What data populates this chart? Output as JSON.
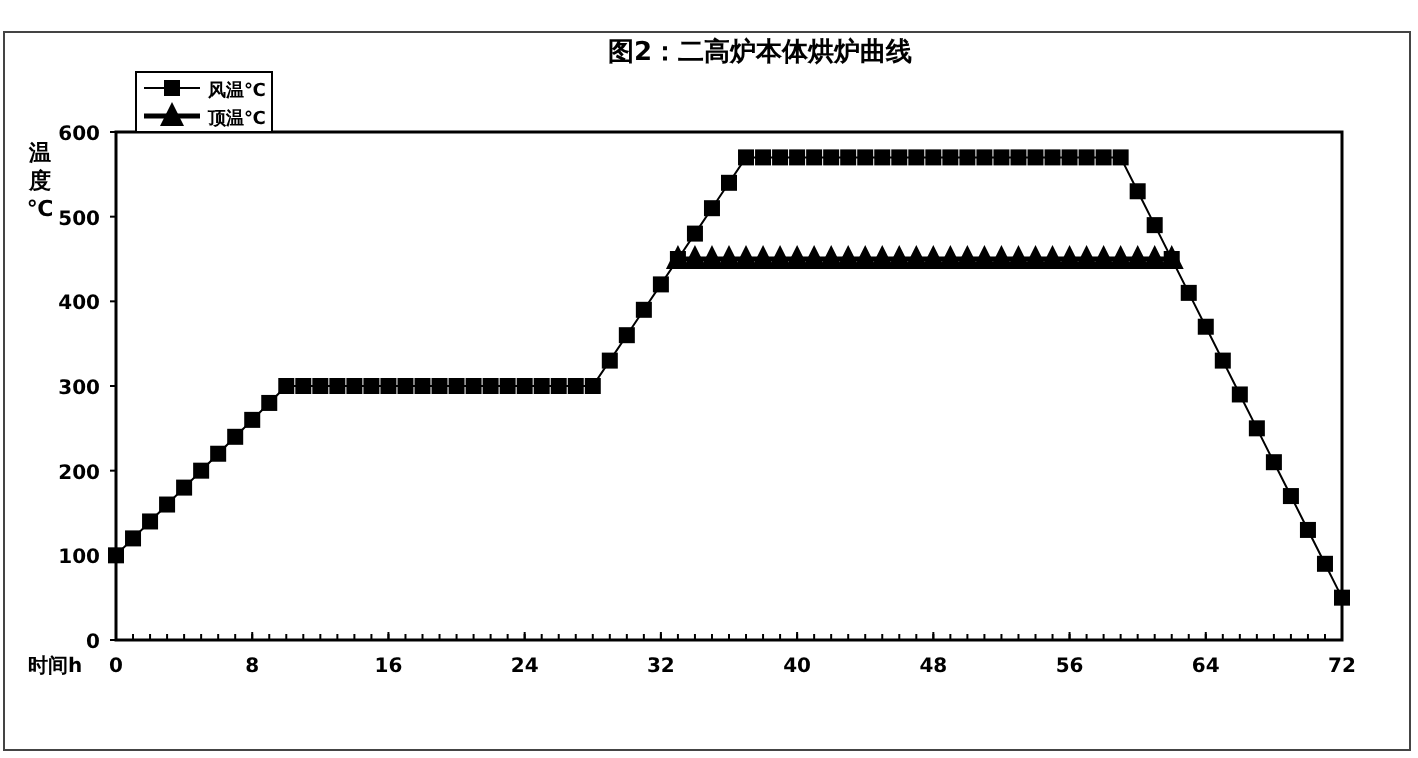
{
  "chart_data": {
    "type": "line",
    "title": "图2：二高炉本体烘炉曲线",
    "xlabel": "时间h",
    "ylabel": "温度℃",
    "xlim": [
      0,
      72
    ],
    "xticks": [
      0,
      8,
      16,
      24,
      32,
      40,
      48,
      56,
      64,
      72
    ],
    "ylim": [
      0,
      600
    ],
    "yticks": [
      0,
      100,
      200,
      300,
      400,
      500,
      600
    ],
    "grid": false,
    "legend": "top left",
    "series": [
      {
        "name": "风温℃",
        "color": "#000000",
        "marker": "square",
        "x": [
          0,
          1,
          2,
          3,
          4,
          5,
          6,
          7,
          8,
          9,
          10,
          11,
          12,
          13,
          14,
          15,
          16,
          17,
          18,
          19,
          20,
          21,
          22,
          23,
          24,
          25,
          26,
          27,
          28,
          29,
          30,
          31,
          32,
          33,
          34,
          35,
          36,
          37,
          38,
          39,
          40,
          41,
          42,
          43,
          44,
          45,
          46,
          47,
          48,
          49,
          50,
          51,
          52,
          53,
          54,
          55,
          56,
          57,
          58,
          59,
          60,
          61,
          62,
          63,
          64,
          65,
          66,
          67,
          68,
          69,
          70,
          71,
          72
        ],
        "values": [
          100,
          120,
          140,
          160,
          180,
          200,
          220,
          240,
          260,
          280,
          300,
          300,
          300,
          300,
          300,
          300,
          300,
          300,
          300,
          300,
          300,
          300,
          300,
          300,
          300,
          300,
          300,
          300,
          300,
          330,
          360,
          390,
          420,
          450,
          480,
          510,
          540,
          570,
          570,
          570,
          570,
          570,
          570,
          570,
          570,
          570,
          570,
          570,
          570,
          570,
          570,
          570,
          570,
          570,
          570,
          570,
          570,
          570,
          570,
          570,
          530,
          490,
          450,
          410,
          370,
          330,
          290,
          250,
          210,
          170,
          130,
          90,
          50
        ]
      },
      {
        "name": "顶温℃",
        "color": "#000000",
        "marker": "triangle",
        "x": [
          33,
          34,
          35,
          36,
          37,
          38,
          39,
          40,
          41,
          42,
          43,
          44,
          45,
          46,
          47,
          48,
          49,
          50,
          51,
          52,
          53,
          54,
          55,
          56,
          57,
          58,
          59,
          60,
          61,
          62
        ],
        "values": [
          450,
          450,
          450,
          450,
          450,
          450,
          450,
          450,
          450,
          450,
          450,
          450,
          450,
          450,
          450,
          450,
          450,
          450,
          450,
          450,
          450,
          450,
          450,
          450,
          450,
          450,
          450,
          450,
          450,
          450
        ]
      }
    ]
  }
}
